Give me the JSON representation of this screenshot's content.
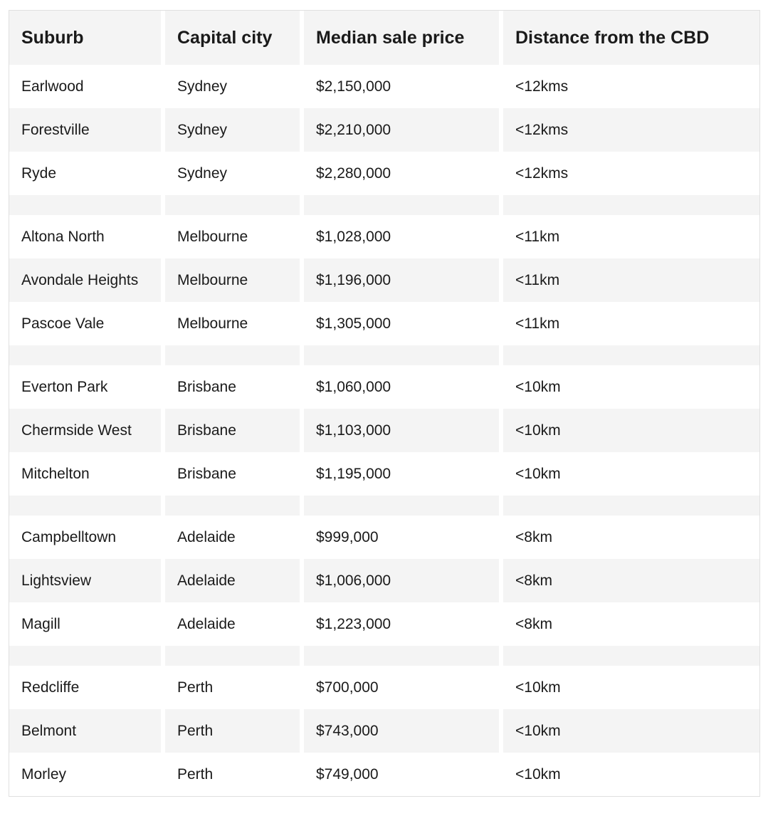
{
  "colors": {
    "header_bg": "#f4f4f4",
    "row_alt_bg": "#f4f4f4",
    "row_bg": "#ffffff",
    "table_border": "#e0e0e0",
    "text": "#1a1a1a"
  },
  "table": {
    "columns": [
      {
        "key": "suburb",
        "label": "Suburb"
      },
      {
        "key": "capital_city",
        "label": "Capital city"
      },
      {
        "key": "median_sale_price",
        "label": "Median sale price"
      },
      {
        "key": "distance_from_cbd",
        "label": "Distance from the CBD"
      }
    ],
    "rows": [
      {
        "suburb": "Earlwood",
        "capital_city": "Sydney",
        "median_sale_price": "$2,150,000",
        "distance_from_cbd": "<12kms"
      },
      {
        "suburb": "Forestville",
        "capital_city": "Sydney",
        "median_sale_price": "$2,210,000",
        "distance_from_cbd": "<12kms"
      },
      {
        "suburb": "Ryde",
        "capital_city": "Sydney",
        "median_sale_price": "$2,280,000",
        "distance_from_cbd": "<12kms"
      },
      {
        "spacer": true
      },
      {
        "suburb": "Altona North",
        "capital_city": "Melbourne",
        "median_sale_price": "$1,028,000",
        "distance_from_cbd": "<11km"
      },
      {
        "suburb": "Avondale Heights",
        "capital_city": "Melbourne",
        "median_sale_price": "$1,196,000",
        "distance_from_cbd": "<11km"
      },
      {
        "suburb": "Pascoe Vale",
        "capital_city": "Melbourne",
        "median_sale_price": "$1,305,000",
        "distance_from_cbd": "<11km"
      },
      {
        "spacer": true
      },
      {
        "suburb": "Everton Park",
        "capital_city": "Brisbane",
        "median_sale_price": "$1,060,000",
        "distance_from_cbd": "<10km"
      },
      {
        "suburb": "Chermside West",
        "capital_city": "Brisbane",
        "median_sale_price": "$1,103,000",
        "distance_from_cbd": "<10km"
      },
      {
        "suburb": "Mitchelton",
        "capital_city": "Brisbane",
        "median_sale_price": "$1,195,000",
        "distance_from_cbd": "<10km"
      },
      {
        "spacer": true
      },
      {
        "suburb": "Campbelltown",
        "capital_city": "Adelaide",
        "median_sale_price": "$999,000",
        "distance_from_cbd": "<8km"
      },
      {
        "suburb": "Lightsview",
        "capital_city": "Adelaide",
        "median_sale_price": "$1,006,000",
        "distance_from_cbd": "<8km"
      },
      {
        "suburb": "Magill",
        "capital_city": "Adelaide",
        "median_sale_price": "$1,223,000",
        "distance_from_cbd": "<8km"
      },
      {
        "spacer": true
      },
      {
        "suburb": "Redcliffe",
        "capital_city": "Perth",
        "median_sale_price": "$700,000",
        "distance_from_cbd": "<10km"
      },
      {
        "suburb": "Belmont",
        "capital_city": "Perth",
        "median_sale_price": "$743,000",
        "distance_from_cbd": "<10km"
      },
      {
        "suburb": "Morley",
        "capital_city": "Perth",
        "median_sale_price": "$749,000",
        "distance_from_cbd": "<10km"
      }
    ]
  },
  "chart_data": {
    "type": "table",
    "columns": [
      "Suburb",
      "Capital city",
      "Median sale price",
      "Distance from the CBD"
    ],
    "rows": [
      [
        "Earlwood",
        "Sydney",
        "$2,150,000",
        "<12kms"
      ],
      [
        "Forestville",
        "Sydney",
        "$2,210,000",
        "<12kms"
      ],
      [
        "Ryde",
        "Sydney",
        "$2,280,000",
        "<12kms"
      ],
      [
        "Altona North",
        "Melbourne",
        "$1,028,000",
        "<11km"
      ],
      [
        "Avondale Heights",
        "Melbourne",
        "$1,196,000",
        "<11km"
      ],
      [
        "Pascoe Vale",
        "Melbourne",
        "$1,305,000",
        "<11km"
      ],
      [
        "Everton Park",
        "Brisbane",
        "$1,060,000",
        "<10km"
      ],
      [
        "Chermside West",
        "Brisbane",
        "$1,103,000",
        "<10km"
      ],
      [
        "Mitchelton",
        "Brisbane",
        "$1,195,000",
        "<10km"
      ],
      [
        "Campbelltown",
        "Adelaide",
        "$999,000",
        "<8km"
      ],
      [
        "Lightsview",
        "Adelaide",
        "$1,006,000",
        "<8km"
      ],
      [
        "Magill",
        "Adelaide",
        "$1,223,000",
        "<8km"
      ],
      [
        "Redcliffe",
        "Perth",
        "$700,000",
        "<10km"
      ],
      [
        "Belmont",
        "Perth",
        "$743,000",
        "<10km"
      ],
      [
        "Morley",
        "Perth",
        "$749,000",
        "<10km"
      ]
    ],
    "group_spacer_rows": true,
    "layout": {
      "zebra_striping": true,
      "header_background": "#f4f4f4",
      "alt_row_background": "#f4f4f4"
    }
  }
}
